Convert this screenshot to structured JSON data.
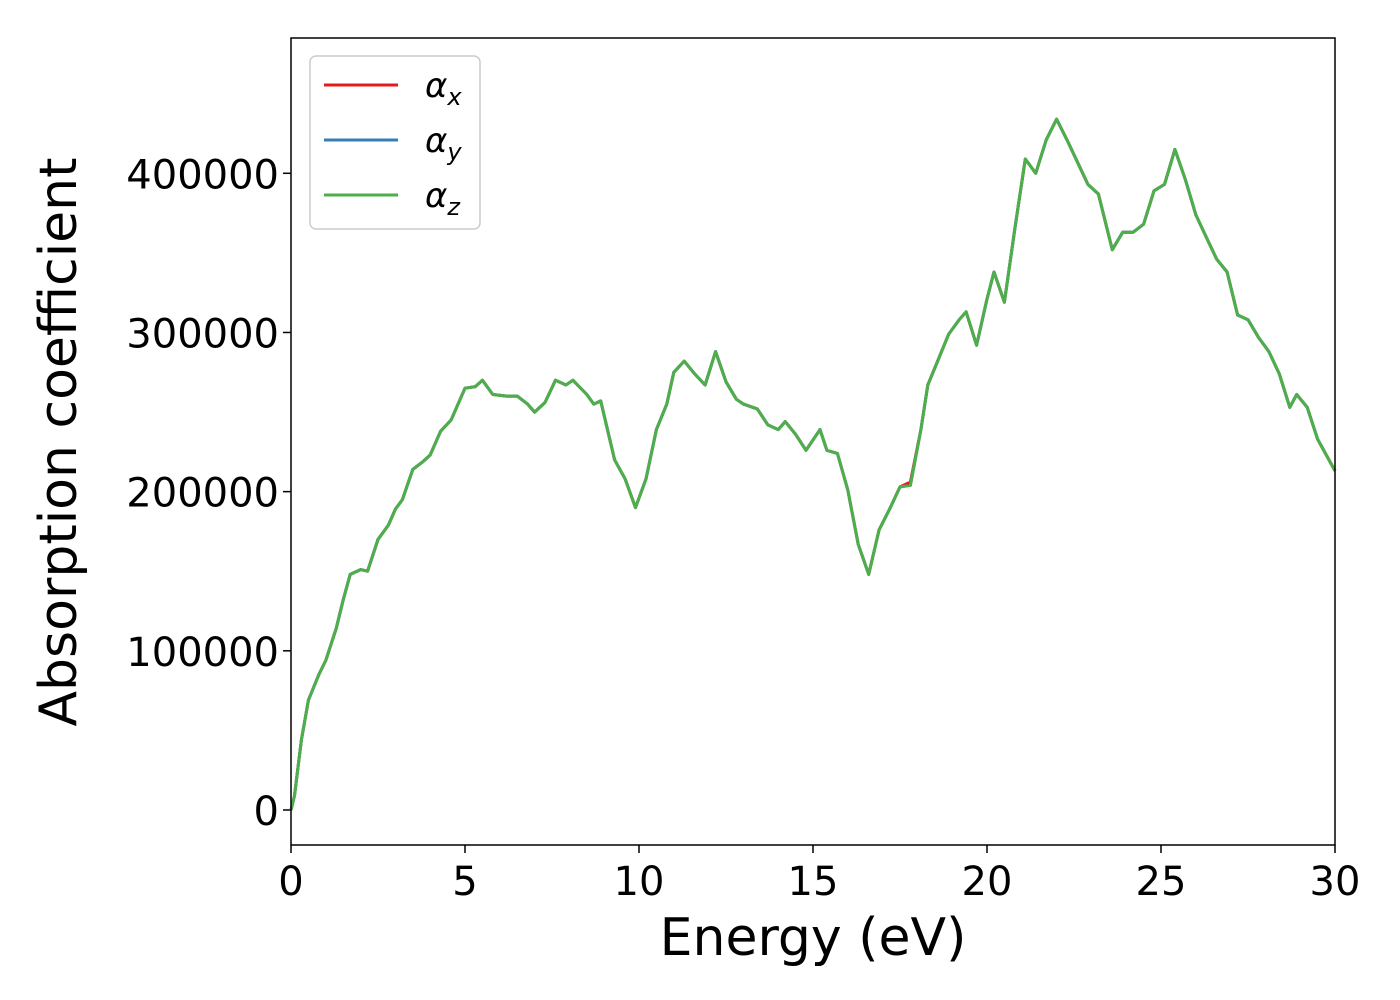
{
  "chart_data": {
    "type": "line",
    "xlabel": "Energy (eV)",
    "ylabel": "Absorption coefficient",
    "x": [
      0,
      0.1,
      0.3,
      0.5,
      0.8,
      1.0,
      1.3,
      1.5,
      1.7,
      2.0,
      2.2,
      2.5,
      2.8,
      3.0,
      3.2,
      3.5,
      3.8,
      4.0,
      4.3,
      4.6,
      5.0,
      5.3,
      5.5,
      5.8,
      6.2,
      6.5,
      6.8,
      7.0,
      7.3,
      7.6,
      7.9,
      8.1,
      8.5,
      8.7,
      8.9,
      9.3,
      9.6,
      9.9,
      10.2,
      10.5,
      10.8,
      11.0,
      11.3,
      11.6,
      11.9,
      12.2,
      12.5,
      12.8,
      13.0,
      13.4,
      13.7,
      14.0,
      14.2,
      14.5,
      14.8,
      15.2,
      15.4,
      15.7,
      16.0,
      16.3,
      16.6,
      16.9,
      17.2,
      17.5,
      17.8,
      18.1,
      18.3,
      18.6,
      18.9,
      19.2,
      19.4,
      19.7,
      20.0,
      20.2,
      20.5,
      20.8,
      21.1,
      21.4,
      21.7,
      22.0,
      22.3,
      22.6,
      22.9,
      23.2,
      23.6,
      23.9,
      24.2,
      24.5,
      24.8,
      25.1,
      25.4,
      25.7,
      26.0,
      26.3,
      26.6,
      26.9,
      27.2,
      27.5,
      27.8,
      28.1,
      28.4,
      28.7,
      28.9,
      29.2,
      29.5,
      30.0
    ],
    "series": [
      {
        "name": "αx",
        "color": "#e41a1c",
        "values": [
          0,
          9000,
          44000,
          69000,
          85000,
          94000,
          114000,
          132000,
          148000,
          151000,
          150000,
          170000,
          179000,
          189000,
          195000,
          214000,
          219000,
          223000,
          238000,
          245000,
          265000,
          266000,
          270000,
          261000,
          260000,
          260000,
          255000,
          250000,
          256000,
          270000,
          267000,
          270000,
          261000,
          255000,
          257000,
          220000,
          208000,
          190000,
          208000,
          239000,
          255000,
          275000,
          282000,
          274000,
          267000,
          288000,
          269000,
          258000,
          255000,
          252000,
          242000,
          239000,
          244000,
          236000,
          226000,
          239000,
          226000,
          224000,
          201000,
          167000,
          148000,
          176000,
          189000,
          203000,
          206000,
          239000,
          267000,
          283000,
          299000,
          308000,
          313000,
          292000,
          321000,
          338000,
          319000,
          365000,
          409000,
          400000,
          421000,
          434000,
          421000,
          407000,
          393000,
          387000,
          352000,
          363000,
          363000,
          368000,
          389000,
          393000,
          415000,
          396000,
          374000,
          360000,
          346000,
          338000,
          311000,
          308000,
          297000,
          288000,
          274000,
          253000,
          261000,
          253000,
          233000,
          213000
        ]
      },
      {
        "name": "αy",
        "color": "#377eb8",
        "values": [
          0,
          9000,
          44000,
          69000,
          85000,
          94000,
          114000,
          132000,
          148000,
          151000,
          150000,
          170000,
          179000,
          189000,
          195000,
          214000,
          219000,
          223000,
          238000,
          245000,
          265000,
          266000,
          270000,
          261000,
          260000,
          260000,
          255000,
          250000,
          256000,
          270000,
          267000,
          270000,
          261000,
          255000,
          257000,
          220000,
          208000,
          190000,
          208000,
          239000,
          255000,
          275000,
          282000,
          274000,
          267000,
          288000,
          269000,
          258000,
          255000,
          252000,
          242000,
          239000,
          244000,
          236000,
          226000,
          239000,
          226000,
          224000,
          201000,
          167000,
          148000,
          176000,
          189000,
          203000,
          204000,
          239000,
          267000,
          283000,
          299000,
          308000,
          313000,
          292000,
          321000,
          338000,
          319000,
          365000,
          409000,
          400000,
          421000,
          434000,
          421000,
          407000,
          393000,
          387000,
          352000,
          363000,
          363000,
          368000,
          389000,
          393000,
          415000,
          396000,
          374000,
          360000,
          346000,
          338000,
          311000,
          308000,
          297000,
          288000,
          274000,
          253000,
          261000,
          253000,
          233000,
          213000
        ]
      },
      {
        "name": "αz",
        "color": "#4daf4a",
        "values": [
          0,
          9000,
          44000,
          69000,
          85000,
          94000,
          114000,
          132000,
          148000,
          151000,
          150000,
          170000,
          179000,
          189000,
          195000,
          214000,
          219000,
          223000,
          238000,
          245000,
          265000,
          266000,
          270000,
          261000,
          260000,
          260000,
          255000,
          250000,
          256000,
          270000,
          267000,
          270000,
          261000,
          255000,
          257000,
          220000,
          208000,
          190000,
          208000,
          239000,
          255000,
          275000,
          282000,
          274000,
          267000,
          288000,
          269000,
          258000,
          255000,
          252000,
          242000,
          239000,
          244000,
          236000,
          226000,
          239000,
          226000,
          224000,
          201000,
          167000,
          148000,
          176000,
          189000,
          203000,
          204000,
          239000,
          267000,
          283000,
          299000,
          308000,
          313000,
          292000,
          321000,
          338000,
          319000,
          365000,
          409000,
          400000,
          421000,
          434000,
          421000,
          407000,
          393000,
          387000,
          352000,
          363000,
          363000,
          368000,
          389000,
          393000,
          415000,
          396000,
          374000,
          360000,
          346000,
          338000,
          311000,
          308000,
          297000,
          288000,
          274000,
          253000,
          261000,
          253000,
          233000,
          213000
        ]
      }
    ],
    "xlim": [
      0,
      30
    ],
    "xticks": [
      0,
      5,
      10,
      15,
      20,
      25,
      30
    ],
    "ylim": [
      -22000,
      485000
    ],
    "yticks": [
      0,
      100000,
      200000,
      300000,
      400000
    ],
    "grid": false,
    "legend": "upper left"
  }
}
